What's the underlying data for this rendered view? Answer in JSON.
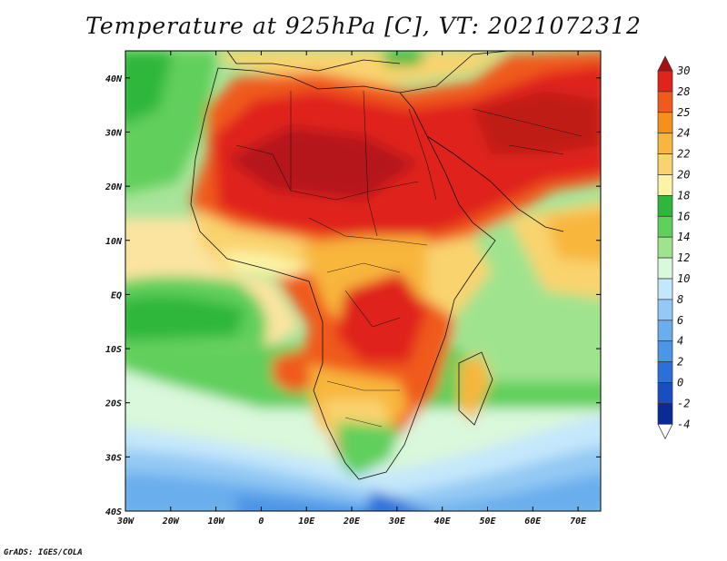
{
  "title": "Temperature at 925hPa [C], VT: 2021072312",
  "credit": "GrADS: IGES/COLA",
  "map": {
    "region": "Africa",
    "variable": "Temperature at 925hPa",
    "units": "C",
    "valid_time": "2021072312",
    "lon_range": [
      -30,
      75
    ],
    "lat_range": [
      -40,
      45
    ],
    "x_ticks": [
      "30W",
      "20W",
      "10W",
      "0",
      "10E",
      "20E",
      "30E",
      "40E",
      "50E",
      "60E",
      "70E"
    ],
    "y_ticks": [
      "40N",
      "30N",
      "20N",
      "10N",
      "EQ",
      "10S",
      "20S",
      "30S",
      "40S"
    ]
  },
  "colorbar": {
    "labels": [
      "30",
      "28",
      "25",
      "24",
      "22",
      "20",
      "18",
      "16",
      "14",
      "12",
      "10",
      "8",
      "6",
      "4",
      "2",
      "0",
      "-2",
      "-4"
    ],
    "colors": [
      "#a50f15",
      "#e0241b",
      "#f05a1c",
      "#f6901a",
      "#f8b63e",
      "#f9d36e",
      "#fdf3a6",
      "#2fb73b",
      "#61cf5b",
      "#a0e38f",
      "#daf8dc",
      "#c4e7fb",
      "#93c9f4",
      "#6aaeee",
      "#4d95e5",
      "#2c6fd8",
      "#184ec0",
      "#0b2a96",
      "#ffffff"
    ]
  }
}
